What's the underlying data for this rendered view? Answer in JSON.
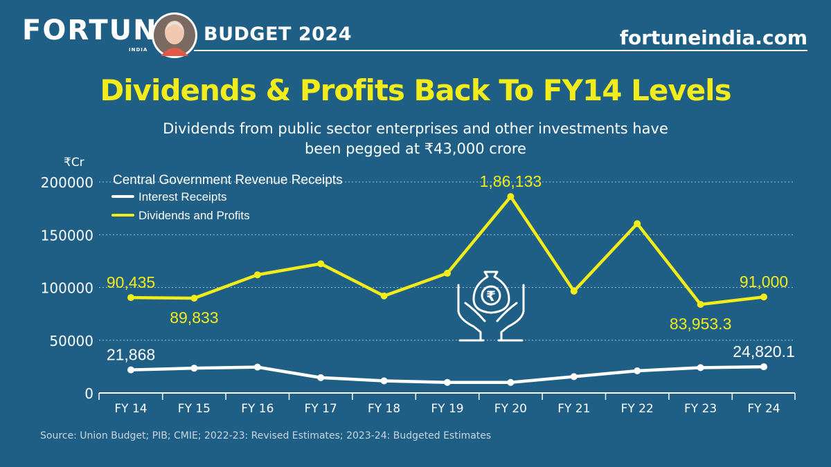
{
  "header": {
    "logo": "FORTUNE",
    "logo_sub": "INDIA",
    "badge": "BUDGET 2024",
    "site": "fortuneindia.com"
  },
  "colors": {
    "background": "#1f5f86",
    "accent": "#f3ec1b",
    "white": "#ffffff"
  },
  "icons": {
    "avatar": "portrait-icon",
    "hands": "hands-money-bag-icon"
  },
  "source": "Source: Union Budget; PIB; CMIE; 2022-23: Revised Estimates; 2023-24: Budgeted Estimates",
  "chart_data": {
    "type": "line",
    "title": "Dividends & Profits Back To FY14 Levels",
    "subtitle_line1": "Dividends from public sector enterprises and other investments have",
    "subtitle_line2": "been pegged at ₹43,000 crore",
    "ylabel": "₹Cr",
    "ylim": [
      0,
      200000
    ],
    "yticks": [
      "0",
      "50000",
      "100000",
      "150000",
      "200000"
    ],
    "grid": true,
    "legend_title": "Central Government Revenue Receipts",
    "legend_position": "top-left",
    "categories": [
      "FY 14",
      "FY 15",
      "FY 16",
      "FY 17",
      "FY 18",
      "FY 19",
      "FY 20",
      "FY 21",
      "FY 22",
      "FY 23",
      "FY 24"
    ],
    "series": [
      {
        "name": "Interest Receipts",
        "color": "#ffffff",
        "values": [
          21868,
          23500,
          24500,
          14500,
          11500,
          10000,
          10000,
          15500,
          21000,
          24000,
          24820.1
        ]
      },
      {
        "name": "Dividends and Profits",
        "color": "#f3ec1b",
        "values": [
          90435,
          89833,
          112000,
          122500,
          92000,
          113500,
          186133,
          96500,
          160500,
          83953.3,
          91000
        ]
      }
    ],
    "annotations": [
      {
        "series": 1,
        "index": 0,
        "text": "90,435",
        "pos": "above"
      },
      {
        "series": 1,
        "index": 1,
        "text": "89,833",
        "pos": "below"
      },
      {
        "series": 1,
        "index": 6,
        "text": "1,86,133",
        "pos": "above"
      },
      {
        "series": 1,
        "index": 9,
        "text": "83,953.3",
        "pos": "below"
      },
      {
        "series": 1,
        "index": 10,
        "text": "91,000",
        "pos": "above"
      },
      {
        "series": 0,
        "index": 0,
        "text": "21,868",
        "pos": "above"
      },
      {
        "series": 0,
        "index": 10,
        "text": "24,820.1",
        "pos": "above"
      }
    ]
  }
}
